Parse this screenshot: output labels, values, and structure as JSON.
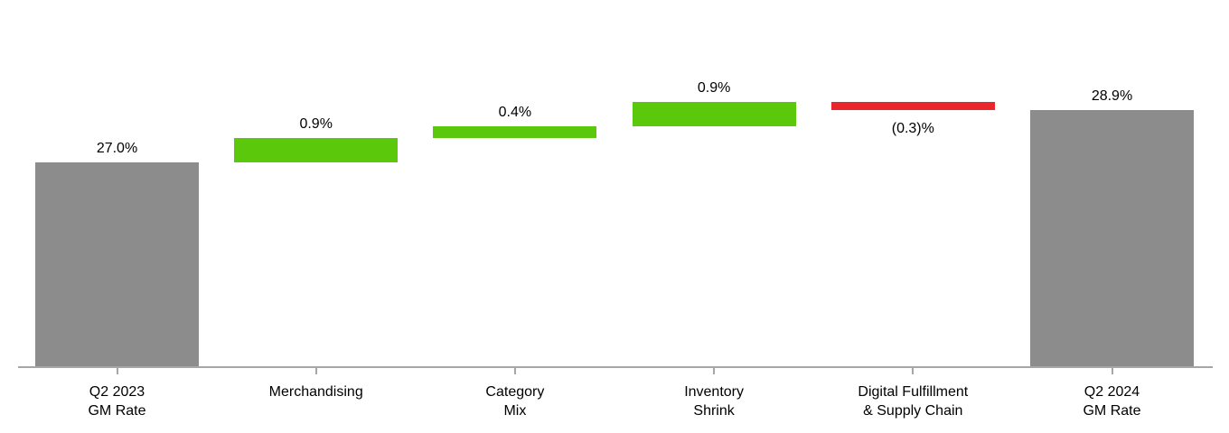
{
  "chart_data": {
    "type": "bar",
    "subtype": "waterfall",
    "title": "",
    "categories": [
      "Q2 2023\nGM Rate",
      "Merchandising",
      "Category\nMix",
      "Inventory\nShrink",
      "Digital Fulfillment\n& Supply Chain",
      "Q2 2024\nGM Rate"
    ],
    "bars": [
      {
        "value": 27.0,
        "display": "27.0%",
        "kind": "total"
      },
      {
        "value": 0.9,
        "display": "0.9%",
        "kind": "increase"
      },
      {
        "value": 0.4,
        "display": "0.4%",
        "kind": "increase"
      },
      {
        "value": 0.9,
        "display": "0.9%",
        "kind": "increase"
      },
      {
        "value": -0.3,
        "display": "(0.3)%",
        "kind": "decrease"
      },
      {
        "value": 28.9,
        "display": "28.9%",
        "kind": "total"
      }
    ],
    "colors": {
      "total": "#8C8C8C",
      "increase": "#5CC80C",
      "decrease": "#E8262B",
      "axis": "#A6A6A6",
      "label": "#000000"
    },
    "legend": null,
    "grid": "off",
    "y_axis_visible": false
  }
}
